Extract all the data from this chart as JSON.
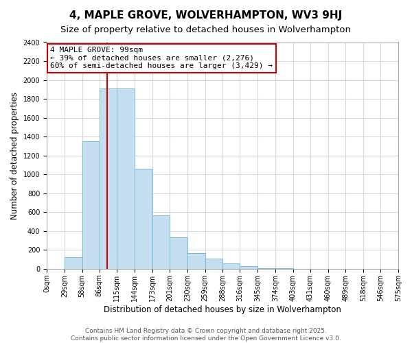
{
  "title": "4, MAPLE GROVE, WOLVERHAMPTON, WV3 9HJ",
  "subtitle": "Size of property relative to detached houses in Wolverhampton",
  "xlabel": "Distribution of detached houses by size in Wolverhampton",
  "ylabel": "Number of detached properties",
  "bar_color": "#c5dff0",
  "bar_edge_color": "#7ab8d9",
  "background_color": "#ffffff",
  "grid_color": "#d0d8e0",
  "bin_labels": [
    "0sqm",
    "29sqm",
    "58sqm",
    "86sqm",
    "115sqm",
    "144sqm",
    "173sqm",
    "201sqm",
    "230sqm",
    "259sqm",
    "288sqm",
    "316sqm",
    "345sqm",
    "374sqm",
    "403sqm",
    "431sqm",
    "460sqm",
    "489sqm",
    "518sqm",
    "546sqm",
    "575sqm"
  ],
  "bin_edges": [
    0,
    29,
    58,
    86,
    115,
    144,
    173,
    201,
    230,
    259,
    288,
    316,
    345,
    374,
    403,
    431,
    460,
    489,
    518,
    546,
    575
  ],
  "bar_heights": [
    0,
    125,
    1350,
    1910,
    1910,
    1060,
    565,
    335,
    165,
    105,
    60,
    30,
    5,
    5,
    0,
    0,
    0,
    0,
    0,
    0
  ],
  "ylim": [
    0,
    2400
  ],
  "yticks": [
    0,
    200,
    400,
    600,
    800,
    1000,
    1200,
    1400,
    1600,
    1800,
    2000,
    2200,
    2400
  ],
  "vline_x": 99,
  "vline_color": "#cc0000",
  "annotation_title": "4 MAPLE GROVE: 99sqm",
  "annotation_line1": "← 39% of detached houses are smaller (2,276)",
  "annotation_line2": "60% of semi-detached houses are larger (3,429) →",
  "annotation_box_color": "#ffffff",
  "annotation_box_edge": "#cc0000",
  "footer_line1": "Contains HM Land Registry data © Crown copyright and database right 2025.",
  "footer_line2": "Contains public sector information licensed under the Open Government Licence v3.0.",
  "title_fontsize": 11,
  "subtitle_fontsize": 9.5,
  "axis_label_fontsize": 8.5,
  "tick_fontsize": 7,
  "annotation_fontsize": 8,
  "footer_fontsize": 6.5
}
